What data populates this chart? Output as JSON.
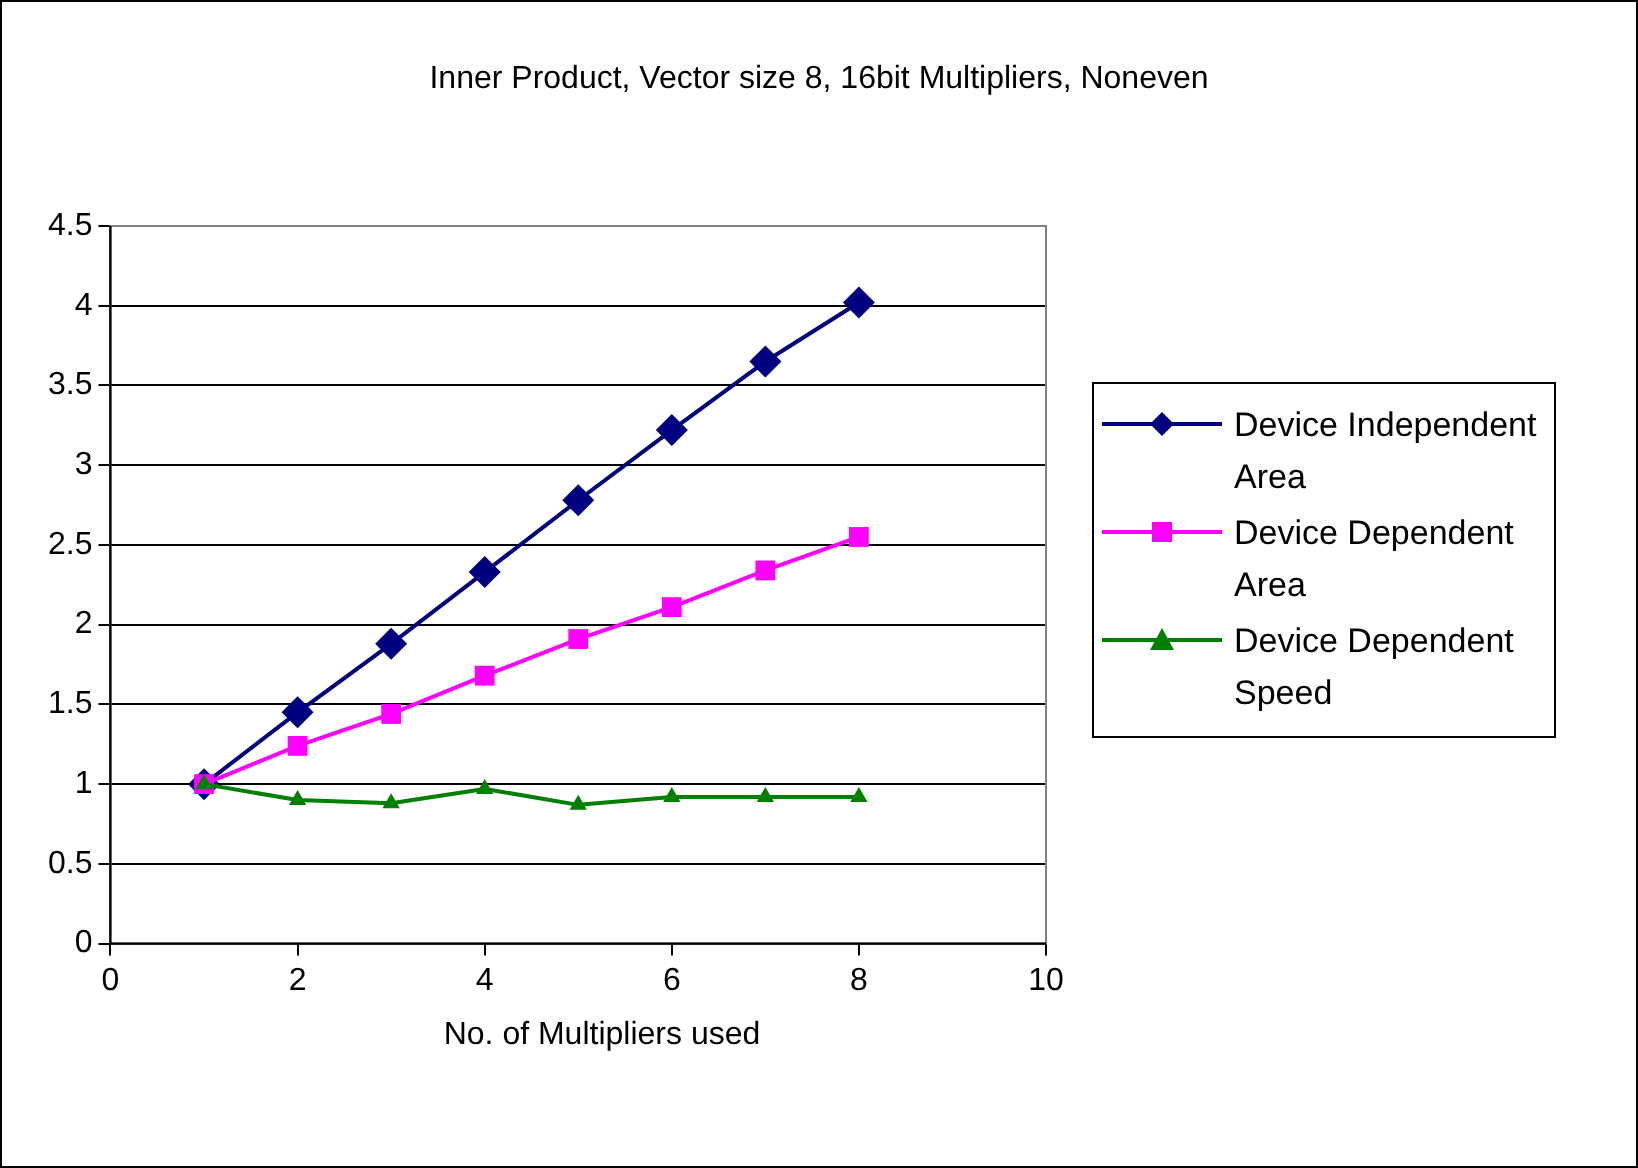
{
  "chart_data": {
    "type": "line",
    "title": "Inner Product, Vector size 8, 16bit Multipliers, Noneven",
    "xlabel": "No. of Multipliers used",
    "x": [
      1,
      2,
      3,
      4,
      5,
      6,
      7,
      8
    ],
    "series": [
      {
        "name": "Device Independent Area",
        "color": "#000080",
        "marker": "diamond",
        "values": [
          1.0,
          1.45,
          1.88,
          2.33,
          2.78,
          3.22,
          3.65,
          4.02
        ]
      },
      {
        "name": "Device Dependent Area",
        "color": "#ff00ff",
        "marker": "square",
        "values": [
          1.0,
          1.24,
          1.44,
          1.68,
          1.91,
          2.11,
          2.34,
          2.55
        ]
      },
      {
        "name": "Device Dependent Speed",
        "color": "#008000",
        "marker": "triangle",
        "values": [
          1.0,
          0.9,
          0.88,
          0.97,
          0.87,
          0.92,
          0.92,
          0.92
        ]
      }
    ],
    "xlim": [
      0,
      10
    ],
    "xticks": [
      0,
      2,
      4,
      6,
      8,
      10
    ],
    "ylim": [
      0,
      4.5
    ],
    "yticks": [
      0,
      0.5,
      1,
      1.5,
      2,
      2.5,
      3,
      3.5,
      4,
      4.5
    ],
    "grid": "y",
    "legend": "right",
    "line_style": "solid"
  }
}
